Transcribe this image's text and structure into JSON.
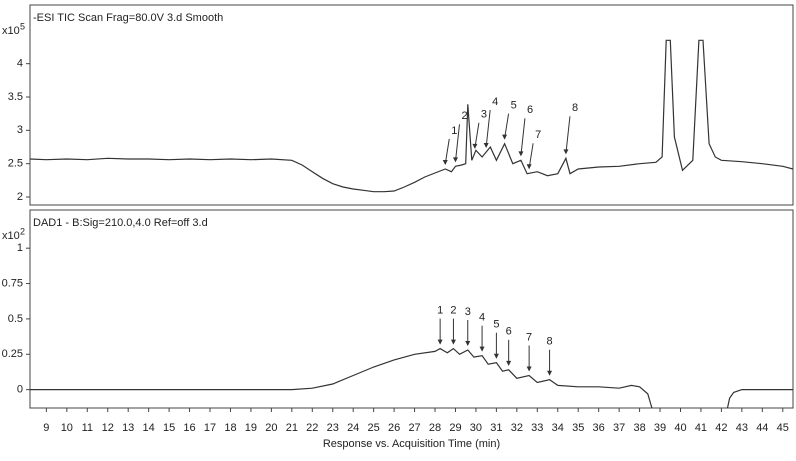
{
  "chart_data": [
    {
      "type": "line",
      "title": "-ESI TIC Scan Frag=80.0V 3.d  Smooth",
      "y_unit": "x10",
      "y_exponent": "5",
      "color": "#333333",
      "xlim": [
        8.2,
        45.5
      ],
      "ylim": [
        1.88,
        4.88
      ],
      "yticks": [
        2,
        2.5,
        3,
        3.5,
        4
      ],
      "x": [
        8.2,
        9,
        10,
        11,
        12,
        13,
        14,
        15,
        16,
        17,
        18,
        19,
        20,
        21,
        21.5,
        22,
        22.5,
        23,
        23.5,
        24,
        24.5,
        25,
        25.5,
        26,
        26.5,
        27,
        27.5,
        28,
        28.5,
        28.8,
        29,
        29.3,
        29.5,
        29.6,
        29.8,
        30,
        30.3,
        30.7,
        31,
        31.4,
        31.8,
        32.2,
        32.5,
        33,
        33.5,
        34,
        34.4,
        34.6,
        35,
        36,
        37,
        38,
        38.8,
        39.1,
        39.3,
        39.5,
        39.7,
        40.1,
        40.6,
        40.9,
        41.1,
        41.4,
        41.7,
        42,
        43,
        44,
        45,
        45.5
      ],
      "values": [
        2.57,
        2.56,
        2.57,
        2.56,
        2.58,
        2.57,
        2.57,
        2.56,
        2.57,
        2.56,
        2.57,
        2.56,
        2.57,
        2.55,
        2.48,
        2.38,
        2.28,
        2.2,
        2.15,
        2.12,
        2.1,
        2.08,
        2.08,
        2.09,
        2.15,
        2.22,
        2.3,
        2.36,
        2.42,
        2.38,
        2.46,
        2.48,
        2.5,
        3.39,
        2.55,
        2.7,
        2.6,
        2.75,
        2.55,
        2.8,
        2.5,
        2.55,
        2.35,
        2.38,
        2.32,
        2.35,
        2.58,
        2.35,
        2.42,
        2.45,
        2.46,
        2.5,
        2.52,
        2.6,
        4.35,
        4.35,
        2.9,
        2.4,
        2.55,
        4.35,
        4.35,
        2.8,
        2.6,
        2.55,
        2.53,
        2.5,
        2.46,
        2.42
      ],
      "peaks": [
        {
          "label": "1",
          "x": 28.5
        },
        {
          "label": "2",
          "x": 29.0
        },
        {
          "label": "3",
          "x": 29.95
        },
        {
          "label": "4",
          "x": 30.5
        },
        {
          "label": "5",
          "x": 31.4
        },
        {
          "label": "6",
          "x": 32.2
        },
        {
          "label": "7",
          "x": 32.6
        },
        {
          "label": "8",
          "x": 34.4
        }
      ]
    },
    {
      "type": "line",
      "title": "DAD1 - B:Sig=210.0,4.0  Ref=off 3.d",
      "y_unit": "x10",
      "y_exponent": "2",
      "color": "#333333",
      "x_label": "Response vs. Acquisition Time (min)",
      "xlim": [
        8.2,
        45.5
      ],
      "ylim": [
        -0.13,
        1.27
      ],
      "yticks": [
        0,
        0.25,
        0.5,
        0.75,
        1
      ],
      "xticks": [
        9,
        10,
        11,
        12,
        13,
        14,
        15,
        16,
        17,
        18,
        19,
        20,
        21,
        22,
        23,
        24,
        25,
        26,
        27,
        28,
        29,
        30,
        31,
        32,
        33,
        34,
        35,
        36,
        37,
        38,
        39,
        40,
        41,
        42,
        43,
        44,
        45
      ],
      "x": [
        8.2,
        10,
        12,
        14,
        16,
        18,
        20,
        21,
        22,
        23,
        24,
        25,
        26,
        27,
        28,
        28.25,
        28.6,
        28.9,
        29.2,
        29.6,
        29.9,
        30.3,
        30.6,
        31,
        31.3,
        31.6,
        32,
        32.6,
        33,
        33.6,
        34,
        35,
        36,
        37,
        37.6,
        38,
        38.4,
        38.6,
        38.7,
        42.3,
        42.4,
        42.6,
        43,
        44,
        45,
        45.5
      ],
      "values": [
        0,
        0,
        0,
        0,
        0,
        0,
        0,
        0,
        0.01,
        0.04,
        0.1,
        0.16,
        0.21,
        0.25,
        0.27,
        0.29,
        0.26,
        0.29,
        0.25,
        0.28,
        0.23,
        0.24,
        0.18,
        0.19,
        0.13,
        0.14,
        0.08,
        0.1,
        0.05,
        0.07,
        0.03,
        0.02,
        0.02,
        0.01,
        0.03,
        0.02,
        -0.03,
        -0.13,
        null,
        -0.13,
        -0.06,
        -0.02,
        0,
        0,
        0,
        0
      ],
      "peaks": [
        {
          "label": "1",
          "x": 28.25
        },
        {
          "label": "2",
          "x": 28.9
        },
        {
          "label": "3",
          "x": 29.6
        },
        {
          "label": "4",
          "x": 30.3
        },
        {
          "label": "5",
          "x": 31.0
        },
        {
          "label": "6",
          "x": 31.6
        },
        {
          "label": "7",
          "x": 32.6
        },
        {
          "label": "8",
          "x": 33.6
        }
      ]
    }
  ]
}
